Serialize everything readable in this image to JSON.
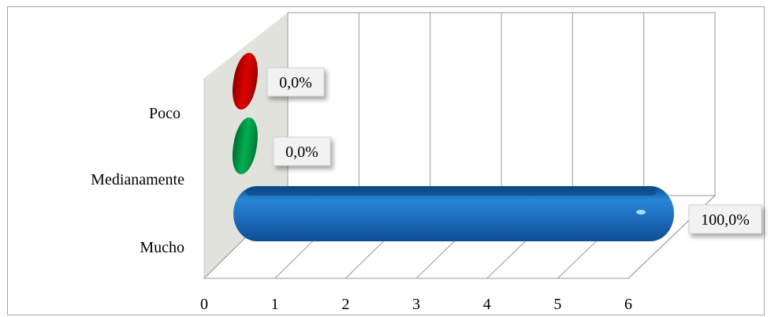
{
  "chart_data": {
    "type": "bar",
    "orientation": "horizontal",
    "style": "3d-cylinder",
    "categories": [
      "Poco",
      "Medianamente",
      "Mucho"
    ],
    "values": [
      0,
      0,
      6
    ],
    "data_labels": [
      "0,0%",
      "0,0%",
      "100,0%"
    ],
    "bar_colors": [
      "#c00000",
      "#00a050",
      "#1f6fc0"
    ],
    "xlim": [
      0,
      6
    ],
    "x_ticks": [
      "0",
      "1",
      "2",
      "3",
      "4",
      "5",
      "6"
    ],
    "grid": true,
    "title": "",
    "xlabel": "",
    "ylabel": ""
  }
}
